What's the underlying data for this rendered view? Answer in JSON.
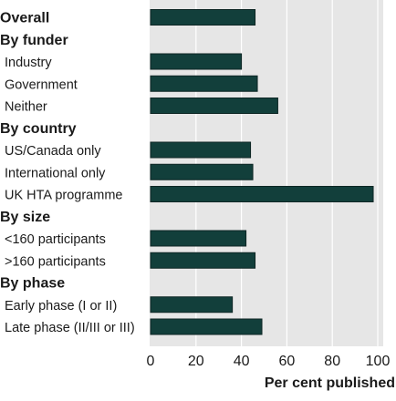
{
  "chart_data": {
    "type": "bar",
    "orientation": "horizontal",
    "xlabel": "Per cent published",
    "xlim": [
      0,
      100
    ],
    "xticks": [
      0,
      20,
      40,
      60,
      80,
      100
    ],
    "grid": true,
    "colors": {
      "bar": "#123f3b",
      "bar_border": "#0d2624",
      "plot_background": "#e6e6e6",
      "gridline": "#ffffff"
    },
    "rows": [
      {
        "kind": "category",
        "label": "Overall",
        "value": 46,
        "bold": true
      },
      {
        "kind": "heading",
        "label": "By funder"
      },
      {
        "kind": "category",
        "label": "Industry",
        "value": 40
      },
      {
        "kind": "category",
        "label": "Government",
        "value": 47
      },
      {
        "kind": "category",
        "label": "Neither",
        "value": 56
      },
      {
        "kind": "heading",
        "label": "By country"
      },
      {
        "kind": "category",
        "label": "US/Canada only",
        "value": 44
      },
      {
        "kind": "category",
        "label": "International only",
        "value": 45
      },
      {
        "kind": "category",
        "label": "UK HTA programme",
        "value": 98
      },
      {
        "kind": "heading",
        "label": "By size"
      },
      {
        "kind": "category",
        "label": "<160 participants",
        "value": 42
      },
      {
        "kind": "category",
        "label": ">160 participants",
        "value": 46
      },
      {
        "kind": "heading",
        "label": "By phase"
      },
      {
        "kind": "category",
        "label": "Early phase (I or II)",
        "value": 36
      },
      {
        "kind": "category",
        "label": "Late phase (II/III or III)",
        "value": 49
      }
    ]
  }
}
